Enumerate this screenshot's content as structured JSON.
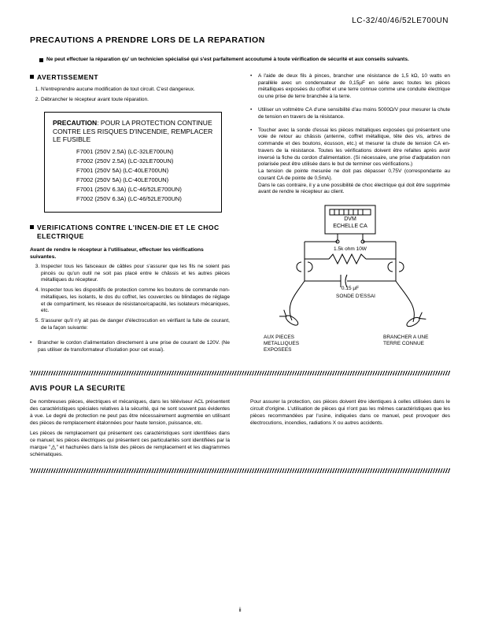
{
  "model_line": "LC-32/40/46/52LE700UN",
  "title": "PRECAUTIONS A PRENDRE LORS DE LA REPARATION",
  "intro": "Ne peut effectuer la réparation qu' un technicien spécialisé qui s'est parfaitement accoutumé à toute vérification de sécurité et aux conseils suivants.",
  "avertissement_heading": "AVERTISSEMENT",
  "avertissement_items": [
    "N'entreprendre aucune modification de tout circuit. C'est dangereux.",
    "Débrancher le récepteur avant toute réparation."
  ],
  "precaution_box": {
    "lead": "PRECAUTION",
    "text": ": POUR LA PROTECTION CONTINUE CONTRE LES RISQUES D'INCENDIE, REMPLACER LE FUSIBLE",
    "fuses": [
      "F7001 (250V  2.5A) (LC-32LE700UN)",
      "F7002 (250V  2.5A) (LC-32LE700UN)",
      "F7001 (250V  5A) (LC-40LE700UN)",
      "F7002 (250V  5A) (LC-40LE700UN)",
      "F7001 (250V  6.3A) (LC-46/52LE700UN)",
      "F7002 (250V  6.3A) (LC-46/52LE700UN)"
    ]
  },
  "verif_heading": "VERIFICATIONS CONTRE L'INCEN-DIE ET LE CHOC ELECTRIQUE",
  "verif_lead": "Avant de rendre le récepteur à l'utilisateur, effectuer les vérifications suivantes.",
  "verif_items": [
    "Inspecter tous les faisceaux de câbles pour s'assurer que les fils ne soient pas pincés ou qu'un outil ne soit pas placé entre le châssis et les autres pièces métalliques du récepteur.",
    "Inspecter tous les dispositifs de protection comme les boutons de commande non-métalliques, les isolants, le dos du coffret, les couvercles ou blindages de réglage et de compartiment, les réseaux de résistance/capacité, les isolateurs mécaniques, etc.",
    "S'assurer qu'il n'y ait pas de danger d'électrocution en vérifiant la fuite de courant, de la façon suivante:"
  ],
  "verif_sub": "Brancher le cordon d'alimentation directement à une prise de courant de 120V. (Ne pas utiliser de transformateur d'isolation pour cet essai).",
  "right_bullets": [
    "A l'aide de deux fils à pinces, brancher une résistance de 1,5 kΩ, 10 watts en parallèle avec un condensateur de 0,15µF en série avec toutes les pièces métalliques exposées du coffret et une terre connue comme une conduite électrique ou une prise de terre branchée à la terre.",
    "Utiliser un voltmètre CA d'une sensibilité d'au moins 5000Ω/V pour mesurer la chute de tension en travers de la résistance.",
    "Toucher avec la sonde d'essai les pièces métalliques exposées qui présentent une voie de retour au châssis (antenne, coffret métallique, tête des vis, arbres de commande et des boutons, écusson, etc.) et mesurer la chute de tension CA en-travers de la résistance. Toutes les vérifications doivent être refaites après avoir inversé la fiche du cordon d'alimentation. (Si nécessaire, une prise d'adpatation non polarisée peut être utilisée dans le but de terminer ces vérifications.)\nLa tension de pointe mesurée ne doit pas dépasser 0,75V (correspondante au courant CA de pointe de 0,5mA).\nDans le cas contraire, il y a une possibilité de choc électrique qui doit être supprimée avant de rendre le récepteur au client."
  ],
  "schematic": {
    "dvm": "DVM",
    "scale": "ECHELLE CA",
    "resistor": "1.5k ohm\n10W",
    "cap": "0.15 µF",
    "probe": "SONDE D'ESSAI",
    "left_label": "AUX PIECES\nMETALLIQUES\nEXPOSEES",
    "right_label": "BRANCHER A UNE\nTERRE CONNUE"
  },
  "avis_heading": "AVIS POUR LA SECURITE",
  "avis_left": [
    "De nombreuses pièces, électriques et mécaniques, dans les téléviseur ACL présentent des caractéristiques spéciales relatives à la sécurité, qui ne sont souvent pas évidentes à vue. Le degré de protection ne peut pas être nécessairement augmentée en utilisant des pièces de remplacement étalonnées pour haute tension, puissance, etc.",
    "Les pièces de remplacement qui présentent ces caractéristiques sont identifiées dans ce manuel; les pièces électriques qui présentent ces particularités sont identifiées par la marque \"   \" et hachurées dans la liste des pièces de remplacement et les diagrammes schématiques."
  ],
  "avis_right": "Pour assurer la protection, ces pièces doivent être identiques à celles utilisées dans le circuit d'origine. L'utilisation de pièces qui n'ont pas les mêmes caractéristiques que les pièces recommandées par l'usine, indiquées dans ce manuel, peut provoquer des électrocutions, incendies, radiations X ou autres accidents.",
  "page_number": "ii"
}
